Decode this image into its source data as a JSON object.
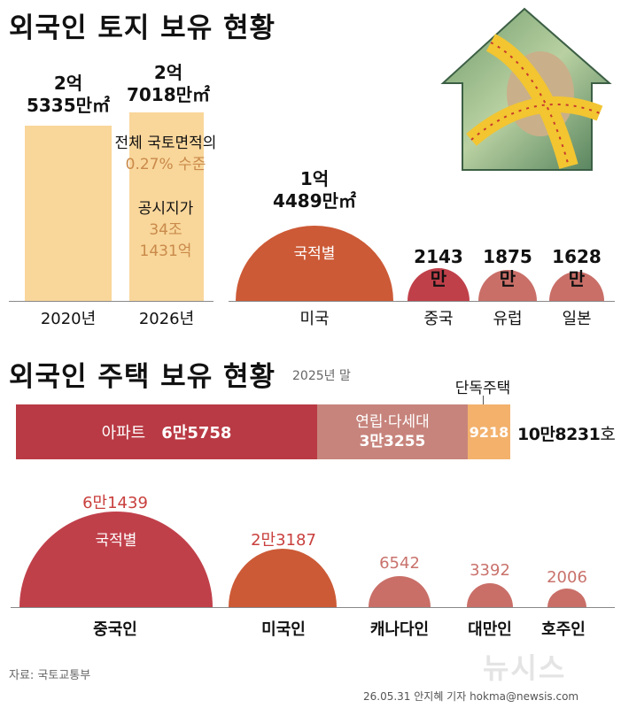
{
  "section1": {
    "title": "외국인 토지 보유 현황",
    "bars": [
      {
        "year": "2020년",
        "value_line1": "2억",
        "value_line2": "5335만㎡",
        "value_m2": 253350000
      },
      {
        "year": "2026년",
        "value_line1": "2억",
        "value_line2": "7018만㎡",
        "value_m2": 270180000
      }
    ],
    "annotation": {
      "line1": "전체 국토면적의",
      "line2": "0.27% 수준",
      "line3": "공시지가",
      "line4": "34조",
      "line5": "1431억"
    },
    "nationality": {
      "label": "국적별",
      "items": [
        {
          "name": "미국",
          "value_line1": "1억",
          "value_line2": "4489만㎡",
          "value_m2": 144890000
        },
        {
          "name": "중국",
          "value_line1": "2143만",
          "value_m2": 21430000
        },
        {
          "name": "유럽",
          "value_line1": "1875만",
          "value_m2": 18750000
        },
        {
          "name": "일본",
          "value_line1": "1628만",
          "value_m2": 16280000
        }
      ]
    }
  },
  "section2": {
    "title": "외국인 주택 보유 현황",
    "subtitle": "2025년 말",
    "segments": [
      {
        "name": "아파트",
        "value_text": "6만5758",
        "value": 65758,
        "color": "#b93a44"
      },
      {
        "name": "연립·다세대",
        "value_text": "3만3255",
        "value": 33255,
        "color": "#c7847c"
      },
      {
        "name": "단독주택",
        "value_text": "9218",
        "value": 9218,
        "color": "#f3b16c"
      }
    ],
    "total_text": "10만8231",
    "total_unit": "호",
    "nationality": {
      "label": "국적별",
      "items": [
        {
          "name": "중국인",
          "value_text": "6만1439",
          "value": 61439
        },
        {
          "name": "미국인",
          "value_text": "2만3187",
          "value": 23187
        },
        {
          "name": "캐나다인",
          "value_text": "6542",
          "value": 6542
        },
        {
          "name": "대만인",
          "value_text": "3392",
          "value": 3392
        },
        {
          "name": "호주인",
          "value_text": "2006",
          "value": 2006
        }
      ]
    }
  },
  "footer": {
    "source": "자료: 국토교통부",
    "credit": "26.05.31 안지혜 기자 hokma@newsis.com",
    "watermark": "뉴시스"
  },
  "chart_data": [
    {
      "type": "bar",
      "title": "외국인 토지 보유 현황",
      "categories": [
        "2020년",
        "2026년"
      ],
      "values": [
        253350000,
        270180000
      ],
      "unit": "㎡"
    },
    {
      "type": "area",
      "label": "국적별",
      "categories": [
        "미국",
        "중국",
        "유럽",
        "일본"
      ],
      "values": [
        144890000,
        21430000,
        18750000,
        16280000
      ],
      "unit": "㎡"
    },
    {
      "type": "bar",
      "title": "외국인 주택 보유 현황",
      "subtitle": "2025년 말",
      "categories": [
        "아파트",
        "연립·다세대",
        "단독주택"
      ],
      "values": [
        65758,
        33255,
        9218
      ],
      "total": 108231,
      "unit": "호"
    },
    {
      "type": "area",
      "label": "국적별",
      "categories": [
        "중국인",
        "미국인",
        "캐나다인",
        "대만인",
        "호주인"
      ],
      "values": [
        61439,
        23187,
        6542,
        3392,
        2006
      ]
    }
  ],
  "colors": {
    "land_bar": "#f9d69a",
    "dome_orange": "#cc5a36",
    "dome_red": "#c0404a",
    "dome_pink": "#c96f68",
    "value_red": "#c9403e",
    "value_pink": "#c9726c",
    "annotation_orange": "#c98a4a"
  },
  "icons": [
    "house-money-illustration",
    "newsis-logo"
  ]
}
